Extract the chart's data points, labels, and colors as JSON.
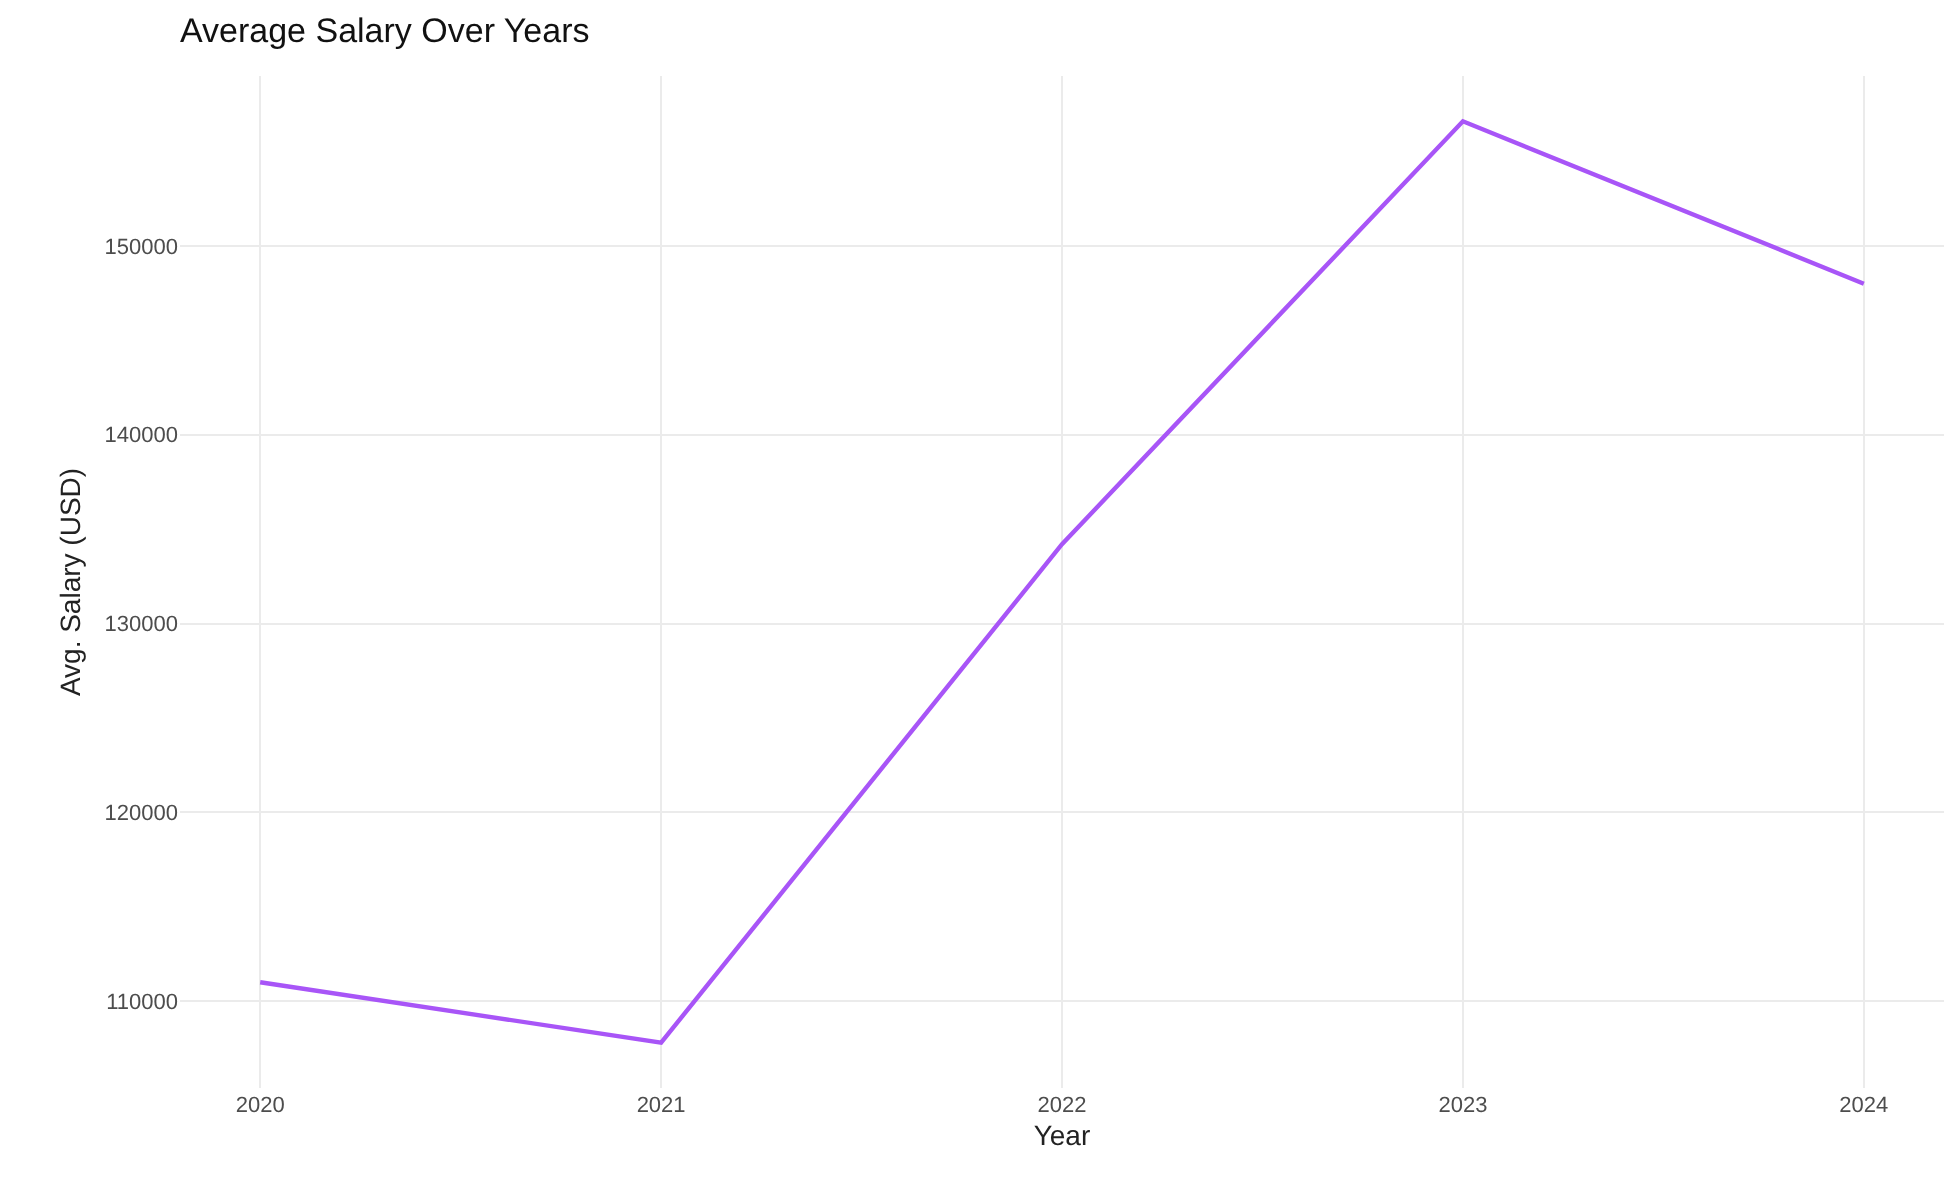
{
  "chart_data": {
    "type": "line",
    "title": "Average Salary Over Years",
    "xlabel": "Year",
    "ylabel": "Avg. Salary (USD)",
    "x": [
      2020,
      2021,
      2022,
      2023,
      2024
    ],
    "series": [
      {
        "color": "#a855f7",
        "values": [
          111000,
          107800,
          134200,
          156600,
          148000
        ]
      }
    ],
    "xlim": [
      2019.8,
      2024.2
    ],
    "xticks": [
      2020,
      2021,
      2022,
      2023,
      2024
    ],
    "ylim": [
      105400,
      159000
    ],
    "yticks": [
      110000,
      120000,
      130000,
      140000,
      150000
    ],
    "grid": true,
    "marker": "none",
    "line_style": "solid"
  }
}
